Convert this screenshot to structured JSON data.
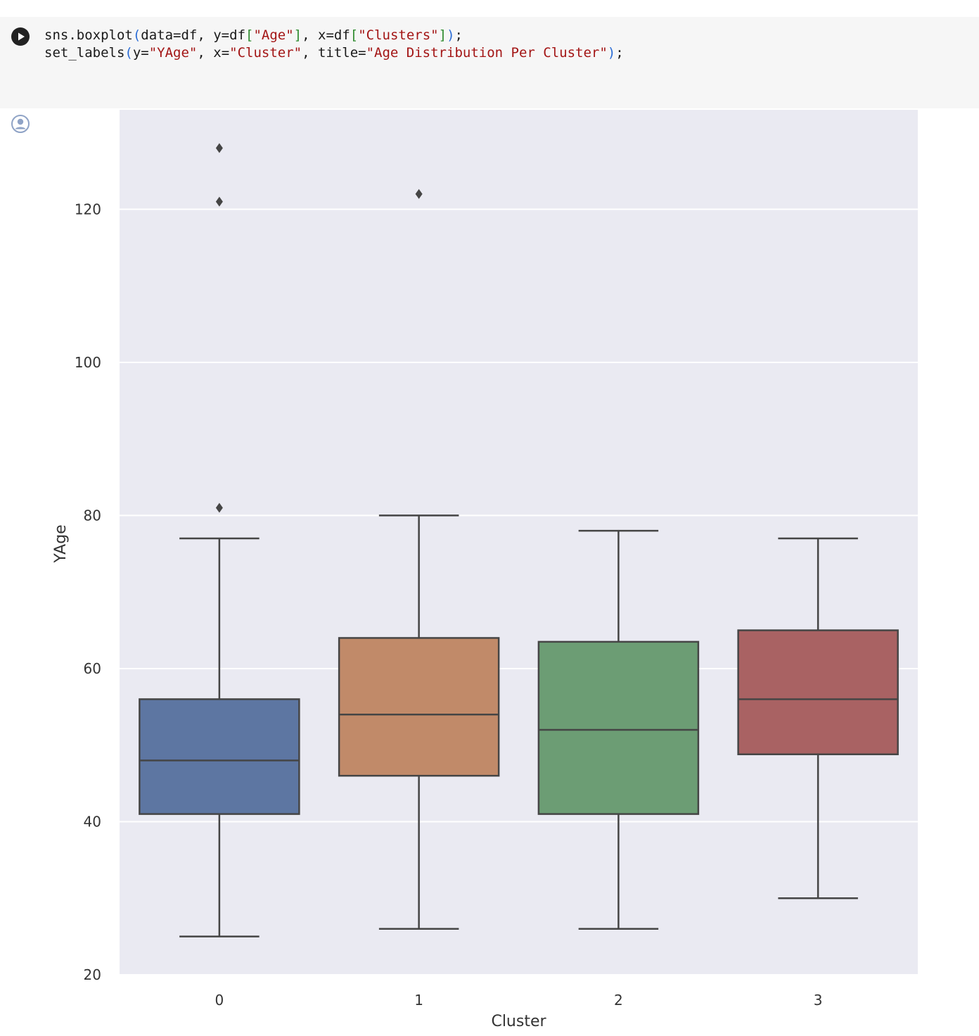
{
  "code_cell": {
    "line1": {
      "pre": "sns.boxplot",
      "paren_open": "(",
      "a1": "data=df, y=df",
      "b1_open": "[",
      "s1": "\"Age\"",
      "b1_close": "]",
      "a2": ", x=df",
      "b2_open": "[",
      "s2": "\"Clusters\"",
      "b2_close": "]",
      "paren_close": ")",
      "end": ";"
    },
    "line2": {
      "pre": "set_labels",
      "paren_open": "(",
      "a1": "y=",
      "s1": "\"YAge\"",
      "a2": ", x=",
      "s2": "\"Cluster\"",
      "a3": ", title=",
      "s3": "\"Age Distribution Per Cluster\"",
      "paren_close": ")",
      "end": ";"
    }
  },
  "icons": {
    "run": "play-circle-icon",
    "output": "user-circle-icon"
  },
  "chart_data": {
    "type": "box",
    "title": "",
    "xlabel": "Cluster",
    "ylabel": "YAge",
    "ylim": [
      20,
      133
    ],
    "yticks": [
      20,
      40,
      60,
      80,
      100,
      120
    ],
    "grid": true,
    "background": "#eaeaf2",
    "categories": [
      "0",
      "1",
      "2",
      "3"
    ],
    "colors": [
      "#5d76a2",
      "#c18a69",
      "#6c9d74",
      "#a96263"
    ],
    "boxes": [
      {
        "whisker_low": 25,
        "q1": 41,
        "median": 48,
        "q3": 56,
        "whisker_high": 77,
        "outliers": [
          81,
          121,
          128
        ]
      },
      {
        "whisker_low": 26,
        "q1": 46,
        "median": 54,
        "q3": 64,
        "whisker_high": 80,
        "outliers": [
          122
        ]
      },
      {
        "whisker_low": 26,
        "q1": 41,
        "median": 52,
        "q3": 63.5,
        "whisker_high": 78,
        "outliers": []
      },
      {
        "whisker_low": 30,
        "q1": 48.8,
        "median": 56,
        "q3": 65,
        "whisker_high": 77,
        "outliers": []
      }
    ]
  }
}
